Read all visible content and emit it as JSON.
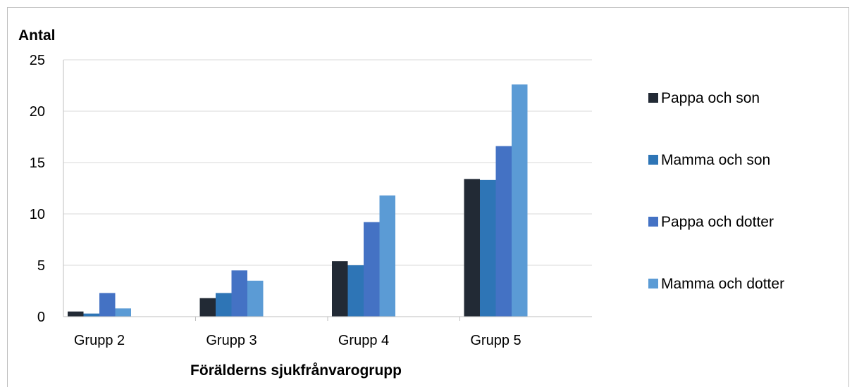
{
  "chart_data": {
    "type": "bar",
    "title": "",
    "ylabel": "Antal",
    "xlabel": "Förälderns sjukfrånvarogrupp",
    "ylim": [
      0,
      25
    ],
    "yticks": [
      "0",
      "5",
      "10",
      "15",
      "20",
      "25"
    ],
    "grid": true,
    "legend_position": "right",
    "categories": [
      "Grupp 2",
      "Grupp 3",
      "Grupp 4",
      "Grupp 5"
    ],
    "series": [
      {
        "name": "Pappa och son",
        "color": "#222a35",
        "values": [
          0.5,
          1.8,
          5.4,
          13.4
        ]
      },
      {
        "name": "Mamma och son",
        "color": "#2e75b6",
        "values": [
          0.3,
          2.3,
          5.0,
          13.3
        ]
      },
      {
        "name": "Pappa och dotter",
        "color": "#4472c4",
        "values": [
          2.3,
          4.5,
          9.2,
          16.6
        ]
      },
      {
        "name": "Mamma och dotter",
        "color": "#5b9bd5",
        "values": [
          0.8,
          3.5,
          11.8,
          22.6
        ]
      }
    ]
  }
}
